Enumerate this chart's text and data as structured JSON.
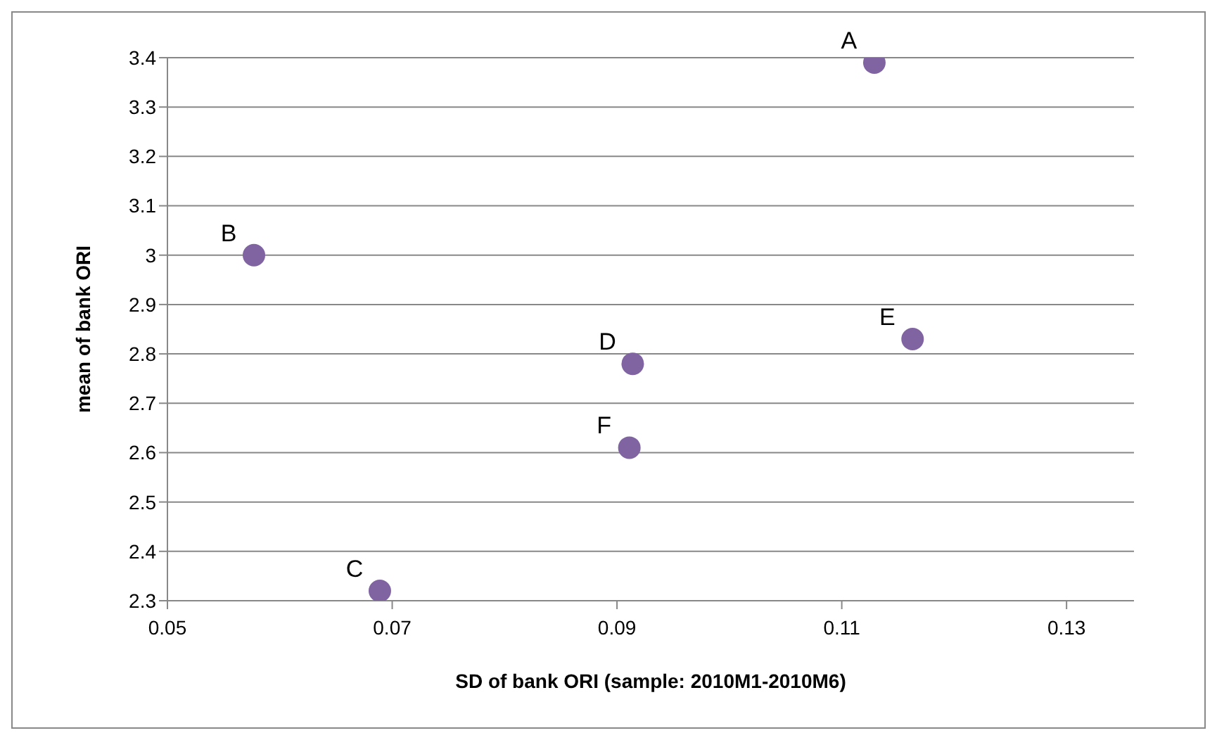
{
  "chart_data": {
    "type": "scatter",
    "xlabel": "SD of bank ORI  (sample: 2010M1-2010M6)",
    "ylabel": "mean of bank ORI",
    "series": [
      {
        "color": "#8064a2",
        "x": [
          0.1129,
          0.0577,
          0.0689,
          0.0914,
          0.1163,
          0.0911
        ],
        "values": [
          3.39,
          3.0,
          2.32,
          2.78,
          2.83,
          2.61
        ]
      }
    ],
    "xlim": [
      0.05,
      0.136
    ],
    "xticks": [
      0.05,
      0.07,
      0.09,
      0.11,
      0.13
    ],
    "ylim": [
      2.3,
      3.4
    ],
    "yticks": [
      2.3,
      2.4,
      2.5,
      2.6,
      2.7,
      2.8,
      2.9,
      3,
      3.1,
      3.2,
      3.3,
      3.4
    ],
    "grid": "y",
    "legend": false,
    "marker": "circle",
    "annotations": [
      {
        "text": "A",
        "x": 0.1129,
        "y": 3.39
      },
      {
        "text": "B",
        "x": 0.0577,
        "y": 3.0
      },
      {
        "text": "C",
        "x": 0.0689,
        "y": 2.32
      },
      {
        "text": "D",
        "x": 0.0914,
        "y": 2.78
      },
      {
        "text": "E",
        "x": 0.1163,
        "y": 2.83
      },
      {
        "text": "F",
        "x": 0.0911,
        "y": 2.61
      }
    ]
  }
}
